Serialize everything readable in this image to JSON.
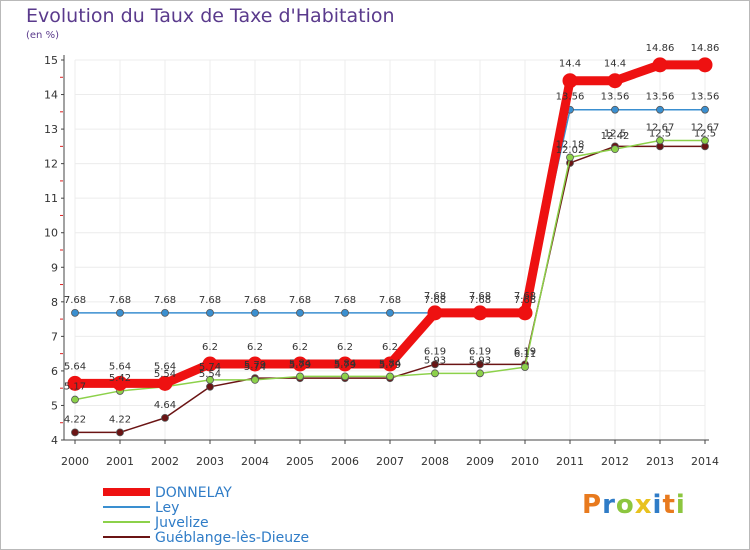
{
  "header": {
    "title": "Evolution du Taux de Taxe d'Habitation",
    "unit": "(en %)"
  },
  "brand": {
    "text": "Proxiti",
    "colors": [
      "#e87a1e",
      "#2f7cc7",
      "#8cc63f",
      "#e8c21e",
      "#2f7cc7",
      "#e87a1e",
      "#8cc63f"
    ]
  },
  "chart_data": {
    "type": "line",
    "title": "Evolution du Taux de Taxe d'Habitation",
    "ylabel": "(en %)",
    "xlabel": "",
    "ylim": [
      4,
      15
    ],
    "yticks": [
      "4",
      "5",
      "6",
      "7",
      "8",
      "9",
      "10",
      "11",
      "12",
      "13",
      "14",
      "15"
    ],
    "x": [
      "2000",
      "2001",
      "2002",
      "2003",
      "2004",
      "2005",
      "2006",
      "2007",
      "2008",
      "2009",
      "2010",
      "2011",
      "2012",
      "2013",
      "2014"
    ],
    "legend_position": "bottom",
    "series": [
      {
        "name": "DONNELAY",
        "color": "#ee1111",
        "values": [
          5.64,
          5.64,
          5.64,
          6.2,
          6.2,
          6.2,
          6.2,
          6.2,
          7.68,
          7.68,
          7.68,
          14.4,
          14.4,
          14.86,
          14.86
        ],
        "labels": [
          "5.64",
          "5.64",
          "5.64",
          "6.2",
          "6.2",
          "6.2",
          "6.2",
          "6.2",
          "7.68",
          "7.68",
          "7.68",
          "14.4",
          "14.4",
          "14.86",
          "14.86"
        ]
      },
      {
        "name": "Ley",
        "color": "#3a8fd0",
        "values": [
          7.68,
          7.68,
          7.68,
          7.68,
          7.68,
          7.68,
          7.68,
          7.68,
          7.68,
          7.68,
          7.68,
          13.56,
          13.56,
          13.56,
          13.56
        ],
        "labels": [
          "7.68",
          "7.68",
          "7.68",
          "7.68",
          "7.68",
          "7.68",
          "7.68",
          "7.68",
          "7.68",
          "7.68",
          "7.68",
          "13.56",
          "13.56",
          "13.56",
          "13.56"
        ]
      },
      {
        "name": "Juvelize",
        "color": "#8cd14a",
        "values": [
          5.17,
          5.42,
          5.54,
          5.74,
          5.74,
          5.84,
          5.84,
          5.84,
          5.93,
          5.93,
          6.11,
          12.18,
          12.42,
          12.67,
          12.67
        ],
        "labels": [
          "5.17",
          "5.42",
          "5.54",
          "5.74",
          "5.74",
          "5.84",
          "5.84",
          "5.84",
          "5.93",
          "5.93",
          "6.11",
          "12.18",
          "12.42",
          "12.67",
          "12.67"
        ]
      },
      {
        "name": "Guéblange-lès-Dieuze",
        "color": "#6b1414",
        "values": [
          4.22,
          4.22,
          4.64,
          5.54,
          5.79,
          5.79,
          5.79,
          5.79,
          6.19,
          6.19,
          6.19,
          12.02,
          12.5,
          12.5,
          12.5
        ],
        "labels": [
          "4.22",
          "4.22",
          "4.64",
          "5.54",
          "5.79",
          "5.79",
          "5.79",
          "5.79",
          "6.19",
          "6.19",
          "6.19",
          "12.02",
          "12.5",
          "12.5",
          "12.5"
        ]
      }
    ]
  }
}
